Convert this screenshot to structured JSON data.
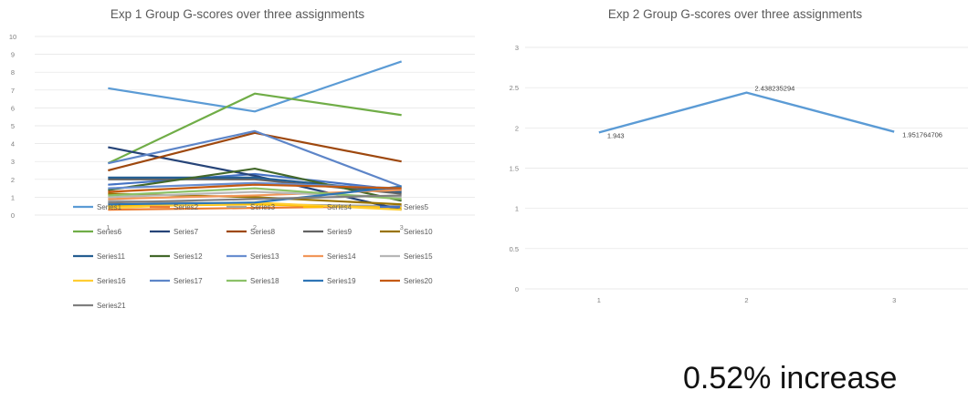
{
  "note": "0.52% increase",
  "colors": {
    "grid": "#e3e3e3",
    "tick_text": "#7f7f7f",
    "title_text": "#595959",
    "series_palette": [
      "#5b9bd5",
      "#ed7d31",
      "#a5a5a5",
      "#ffc000",
      "#4472c4",
      "#70ad47",
      "#264478",
      "#9e480e",
      "#636363",
      "#997300",
      "#255e91",
      "#43682b",
      "#698ed0",
      "#f1975a",
      "#b7b7b7",
      "#ffcd33",
      "#5d85c8",
      "#8cc168",
      "#2e75b6",
      "#c55a11",
      "#7f7f7f"
    ]
  },
  "chart_data": [
    {
      "type": "line",
      "title": "Exp 1 Group G-scores over three assignments",
      "xlabel": "",
      "ylabel": "",
      "categories": [
        "1",
        "2",
        "3"
      ],
      "ylim": [
        0,
        10
      ],
      "yticks": [
        "0",
        "1",
        "2",
        "3",
        "4",
        "5",
        "6",
        "7",
        "8",
        "9",
        "10"
      ],
      "grid": true,
      "legend": "bottom",
      "series": [
        {
          "name": "Series1",
          "values": [
            7.1,
            5.8,
            8.6
          ]
        },
        {
          "name": "Series2",
          "values": [
            0.3,
            0.4,
            0.5
          ]
        },
        {
          "name": "Series3",
          "values": [
            0.8,
            0.6,
            0.5
          ]
        },
        {
          "name": "Series4",
          "values": [
            0.5,
            0.6,
            0.4
          ]
        },
        {
          "name": "Series5",
          "values": [
            1.7,
            2.3,
            1.4
          ]
        },
        {
          "name": "Series6",
          "values": [
            2.9,
            6.8,
            5.6
          ]
        },
        {
          "name": "Series7",
          "values": [
            3.8,
            2.2,
            0.3
          ]
        },
        {
          "name": "Series8",
          "values": [
            2.5,
            4.6,
            3.0
          ]
        },
        {
          "name": "Series9",
          "values": [
            2.0,
            2.0,
            1.2
          ]
        },
        {
          "name": "Series10",
          "values": [
            1.2,
            1.0,
            0.6
          ]
        },
        {
          "name": "Series11",
          "values": [
            2.1,
            2.1,
            1.3
          ]
        },
        {
          "name": "Series12",
          "values": [
            1.4,
            2.6,
            0.8
          ]
        },
        {
          "name": "Series13",
          "values": [
            1.5,
            1.8,
            1.5
          ]
        },
        {
          "name": "Series14",
          "values": [
            0.9,
            1.1,
            1.4
          ]
        },
        {
          "name": "Series15",
          "values": [
            1.0,
            1.3,
            1.0
          ]
        },
        {
          "name": "Series16",
          "values": [
            0.4,
            0.7,
            0.3
          ]
        },
        {
          "name": "Series17",
          "values": [
            2.9,
            4.7,
            1.6
          ]
        },
        {
          "name": "Series18",
          "values": [
            1.1,
            1.5,
            0.9
          ]
        },
        {
          "name": "Series19",
          "values": [
            0.6,
            0.7,
            1.6
          ]
        },
        {
          "name": "Series20",
          "values": [
            1.3,
            1.7,
            1.5
          ]
        },
        {
          "name": "Series21",
          "values": [
            0.7,
            0.9,
            1.1
          ]
        }
      ]
    },
    {
      "type": "line",
      "title": "Exp 2 Group G-scores over three assignments",
      "xlabel": "",
      "ylabel": "",
      "categories": [
        "1",
        "2",
        "3"
      ],
      "ylim": [
        0,
        3
      ],
      "yticks": [
        "0",
        "0.5",
        "1",
        "1.5",
        "2",
        "2.5",
        "3"
      ],
      "grid": true,
      "series": [
        {
          "values": [
            1.943,
            2.438235294,
            1.951764706
          ],
          "labels": [
            "1.943",
            "2.438235294",
            "1.951764706"
          ]
        }
      ]
    }
  ]
}
